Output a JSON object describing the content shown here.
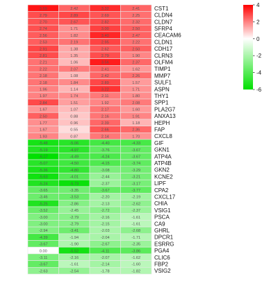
{
  "chart_data": {
    "type": "heatmap",
    "genes": [
      "CST1",
      "CLDN4",
      "CLDN7",
      "SFRP4",
      "CEACAM6",
      "CLDN1",
      "CDH17",
      "CLRN3",
      "OLFM4",
      "TIMP1",
      "MMP7",
      "SULF1",
      "ASPN",
      "THY1",
      "SPP1",
      "PLA2G7",
      "ANXA13",
      "HEPH",
      "FAP",
      "CXCL8",
      "GIF",
      "GKN1",
      "ATP4A",
      "ATP4B",
      "GKN2",
      "KCNE2",
      "LIPF",
      "CPA2",
      "CXCL17",
      "CHIA",
      "VSIG1",
      "PSCA",
      "CA9",
      "GHRL",
      "DPCR1",
      "ESRRG",
      "PGA4",
      "CLIC6",
      "FBP2",
      "VSIG2"
    ],
    "values": [
      [
        3.69,
        2.42,
        3.32,
        2.41
      ],
      [
        2.79,
        2.89,
        2.69,
        2.25
      ],
      [
        2.7,
        2.67,
        2.82,
        2.32
      ],
      [
        2.74,
        1.71,
        3.0,
        2.5
      ],
      [
        2.56,
        1.82,
        3.4,
        2.47
      ],
      [
        2.53,
        2.19,
        2.95,
        2.22
      ],
      [
        2.91,
        1.38,
        2.62,
        2.5
      ],
      [
        2.81,
        1.35,
        2.79,
        1.9
      ],
      [
        2.21,
        1.06,
        3.56,
        2.37
      ],
      [
        2.22,
        2.07,
        2.41,
        1.62
      ],
      [
        2.18,
        1.08,
        2.42,
        2.26
      ],
      [
        2.18,
        1.84,
        2.89,
        1.57
      ],
      [
        1.96,
        1.14,
        3.22,
        1.71
      ],
      [
        1.97,
        1.74,
        2.11,
        1.8
      ],
      [
        2.84,
        1.51,
        1.92,
        2.08
      ],
      [
        1.67,
        1.07,
        2.17,
        1.6
      ],
      [
        2.5,
        0.88,
        2.16,
        1.91
      ],
      [
        1.77,
        0.96,
        2.39,
        1.18
      ],
      [
        1.67,
        0.55,
        2.66,
        2.36
      ],
      [
        1.93,
        0.87,
        2.14,
        1.7
      ],
      [
        -5.48,
        -5.06,
        -4.4,
        -4.33
      ],
      [
        -5.19,
        -4.97,
        -3.76,
        -3.67
      ],
      [
        -6.17,
        -4.49,
        -4.24,
        -3.67
      ],
      [
        -5.07,
        -4.5,
        -4.15,
        -3.74
      ],
      [
        -5.36,
        -4.8,
        -3.08,
        -3.29
      ],
      [
        -5.63,
        -4.01,
        -2.44,
        -3.21
      ],
      [
        -5.24,
        -5.73,
        -2.37,
        -3.17
      ],
      [
        -3.65,
        -3.35,
        -3.67,
        -3.77
      ],
      [
        -3.46,
        -3.53,
        -2.2,
        -2.19
      ],
      [
        -5.25,
        -2.86,
        -2.13,
        -2.62
      ],
      [
        -3.52,
        -2.45,
        -2.72,
        -2.37
      ],
      [
        -3.0,
        -2.79,
        -2.16,
        -1.61
      ],
      [
        -3.0,
        -2.79,
        -2.15,
        -1.61
      ],
      [
        -2.94,
        -3.41,
        -2.03,
        -2.68
      ],
      [
        -4.39,
        -1.94,
        -2.04,
        -1.71
      ],
      [
        -3.67,
        -1.9,
        -2.67,
        -2.35
      ],
      [
        0.0,
        -5.52,
        -4.11,
        -3.86
      ],
      [
        -3.11,
        -2.16,
        -2.07,
        -1.62
      ],
      [
        -3.67,
        -1.61,
        -2.14,
        -1.6
      ],
      [
        -2.63,
        -2.54,
        -1.78,
        -1.82
      ]
    ],
    "value_range": [
      -6,
      4
    ],
    "colorbar": {
      "ticks": [
        4,
        2,
        0,
        -2,
        -4,
        -6
      ],
      "tick_labels": [
        "4",
        "2",
        "0",
        "-2",
        "-4",
        "-6"
      ],
      "colors": {
        "high": "#ff0000",
        "mid": "#ffffff",
        "low": "#00e000"
      }
    },
    "grid": true,
    "legend_position": "top-right"
  }
}
